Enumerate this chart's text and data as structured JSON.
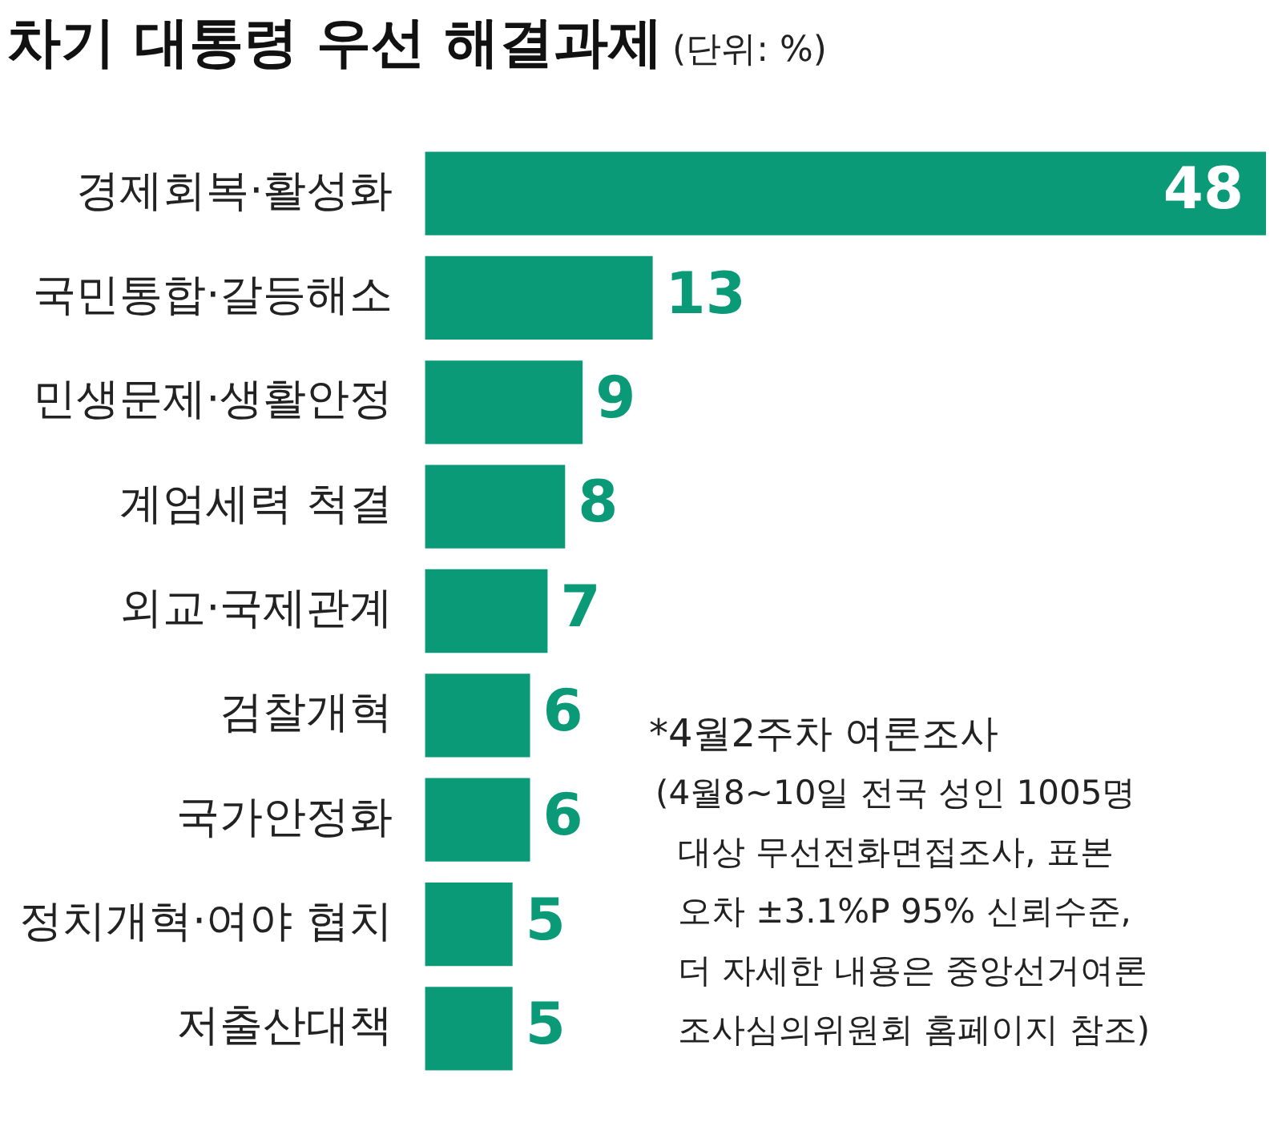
{
  "chart_data": {
    "type": "bar",
    "orientation": "horizontal",
    "title": "차기 대통령 우선 해결과제",
    "subtitle": "(단위: %)",
    "categories": [
      "경제회복·활성화",
      "국민통합·갈등해소",
      "민생문제·생활안정",
      "계엄세력 척결",
      "외교·국제관계",
      "검찰개혁",
      "국가안정화",
      "정치개혁·여야 협치",
      "저출산대책"
    ],
    "values": [
      48,
      13,
      9,
      8,
      7,
      6,
      6,
      5,
      5
    ],
    "color": "#0a9a78",
    "data_labels": true,
    "annotations": [
      "*4월2주차 여론조사",
      "(4월8~10일 전국 성인 1005명",
      "대상 무선전화면접조사, 표본",
      "오차 ±3.1%P 95% 신뢰수준,",
      "더 자세한 내용은 중앙선거여론",
      "조사심의위원회 홈페이지 참조)"
    ]
  }
}
